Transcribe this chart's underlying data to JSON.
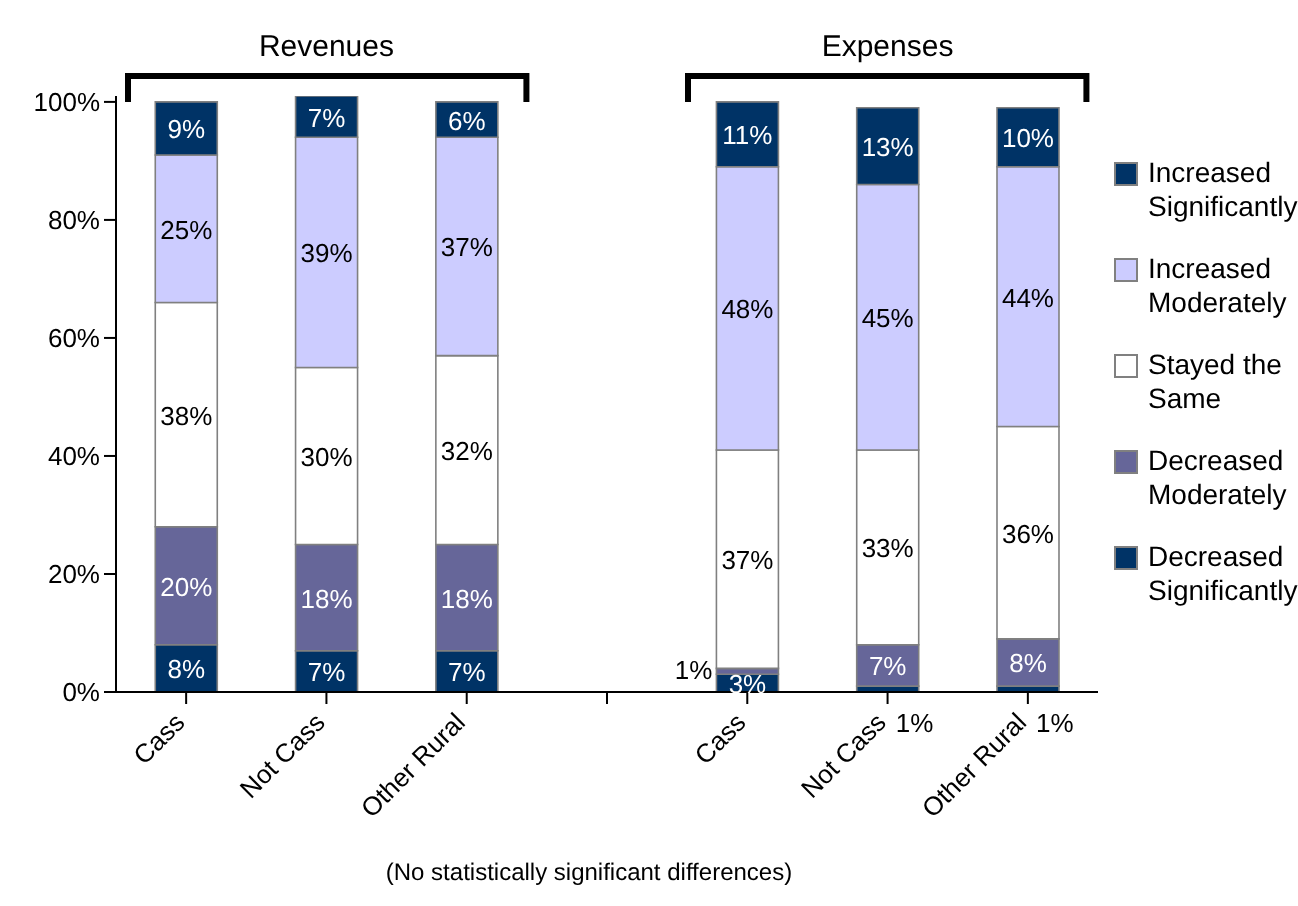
{
  "chart_data": {
    "type": "bar",
    "stacked": true,
    "categories": [
      "Cass",
      "Not Cass",
      "Other Rural",
      null,
      "Cass",
      "Not Cass",
      "Other Rural"
    ],
    "series": [
      {
        "name": "Decreased Significantly",
        "color": "#003366",
        "values": [
          8,
          7,
          7,
          null,
          3,
          1,
          1
        ],
        "value_labels": [
          "8%",
          "7%",
          "7%",
          null,
          "3%",
          "1%",
          "1%"
        ]
      },
      {
        "name": "Decreased Moderately",
        "color": "#666699",
        "values": [
          20,
          18,
          18,
          null,
          1,
          7,
          8
        ],
        "value_labels": [
          "20%",
          "18%",
          "18%",
          null,
          "1%",
          "7%",
          "8%"
        ]
      },
      {
        "name": "Stayed the Same",
        "color": "#ffffff",
        "values": [
          38,
          30,
          32,
          null,
          37,
          33,
          36
        ],
        "value_labels": [
          "38%",
          "30%",
          "32%",
          null,
          "37%",
          "33%",
          "36%"
        ]
      },
      {
        "name": "Increased Moderately",
        "color": "#ccccff",
        "values": [
          25,
          39,
          37,
          null,
          48,
          45,
          44
        ],
        "value_labels": [
          "25%",
          "39%",
          "37%",
          null,
          "48%",
          "45%",
          "44%"
        ]
      },
      {
        "name": "Increased Significantly",
        "color": "#003366",
        "values": [
          9,
          7,
          6,
          null,
          11,
          13,
          10
        ],
        "value_labels": [
          "9%",
          "7%",
          "6%",
          null,
          "11%",
          "13%",
          "10%"
        ]
      }
    ],
    "ylim": [
      0,
      101
    ],
    "yticks": [
      {
        "value": 0,
        "label": "0%"
      },
      {
        "value": 20,
        "label": "20%"
      },
      {
        "value": 40,
        "label": "40%"
      },
      {
        "value": 60,
        "label": "60%"
      },
      {
        "value": 80,
        "label": "80%"
      },
      {
        "value": 100,
        "label": "100%"
      }
    ],
    "grid": false,
    "legend": "right",
    "annotations": [
      "Revenues",
      "Expenses",
      "(No statistically significant differences)"
    ]
  }
}
